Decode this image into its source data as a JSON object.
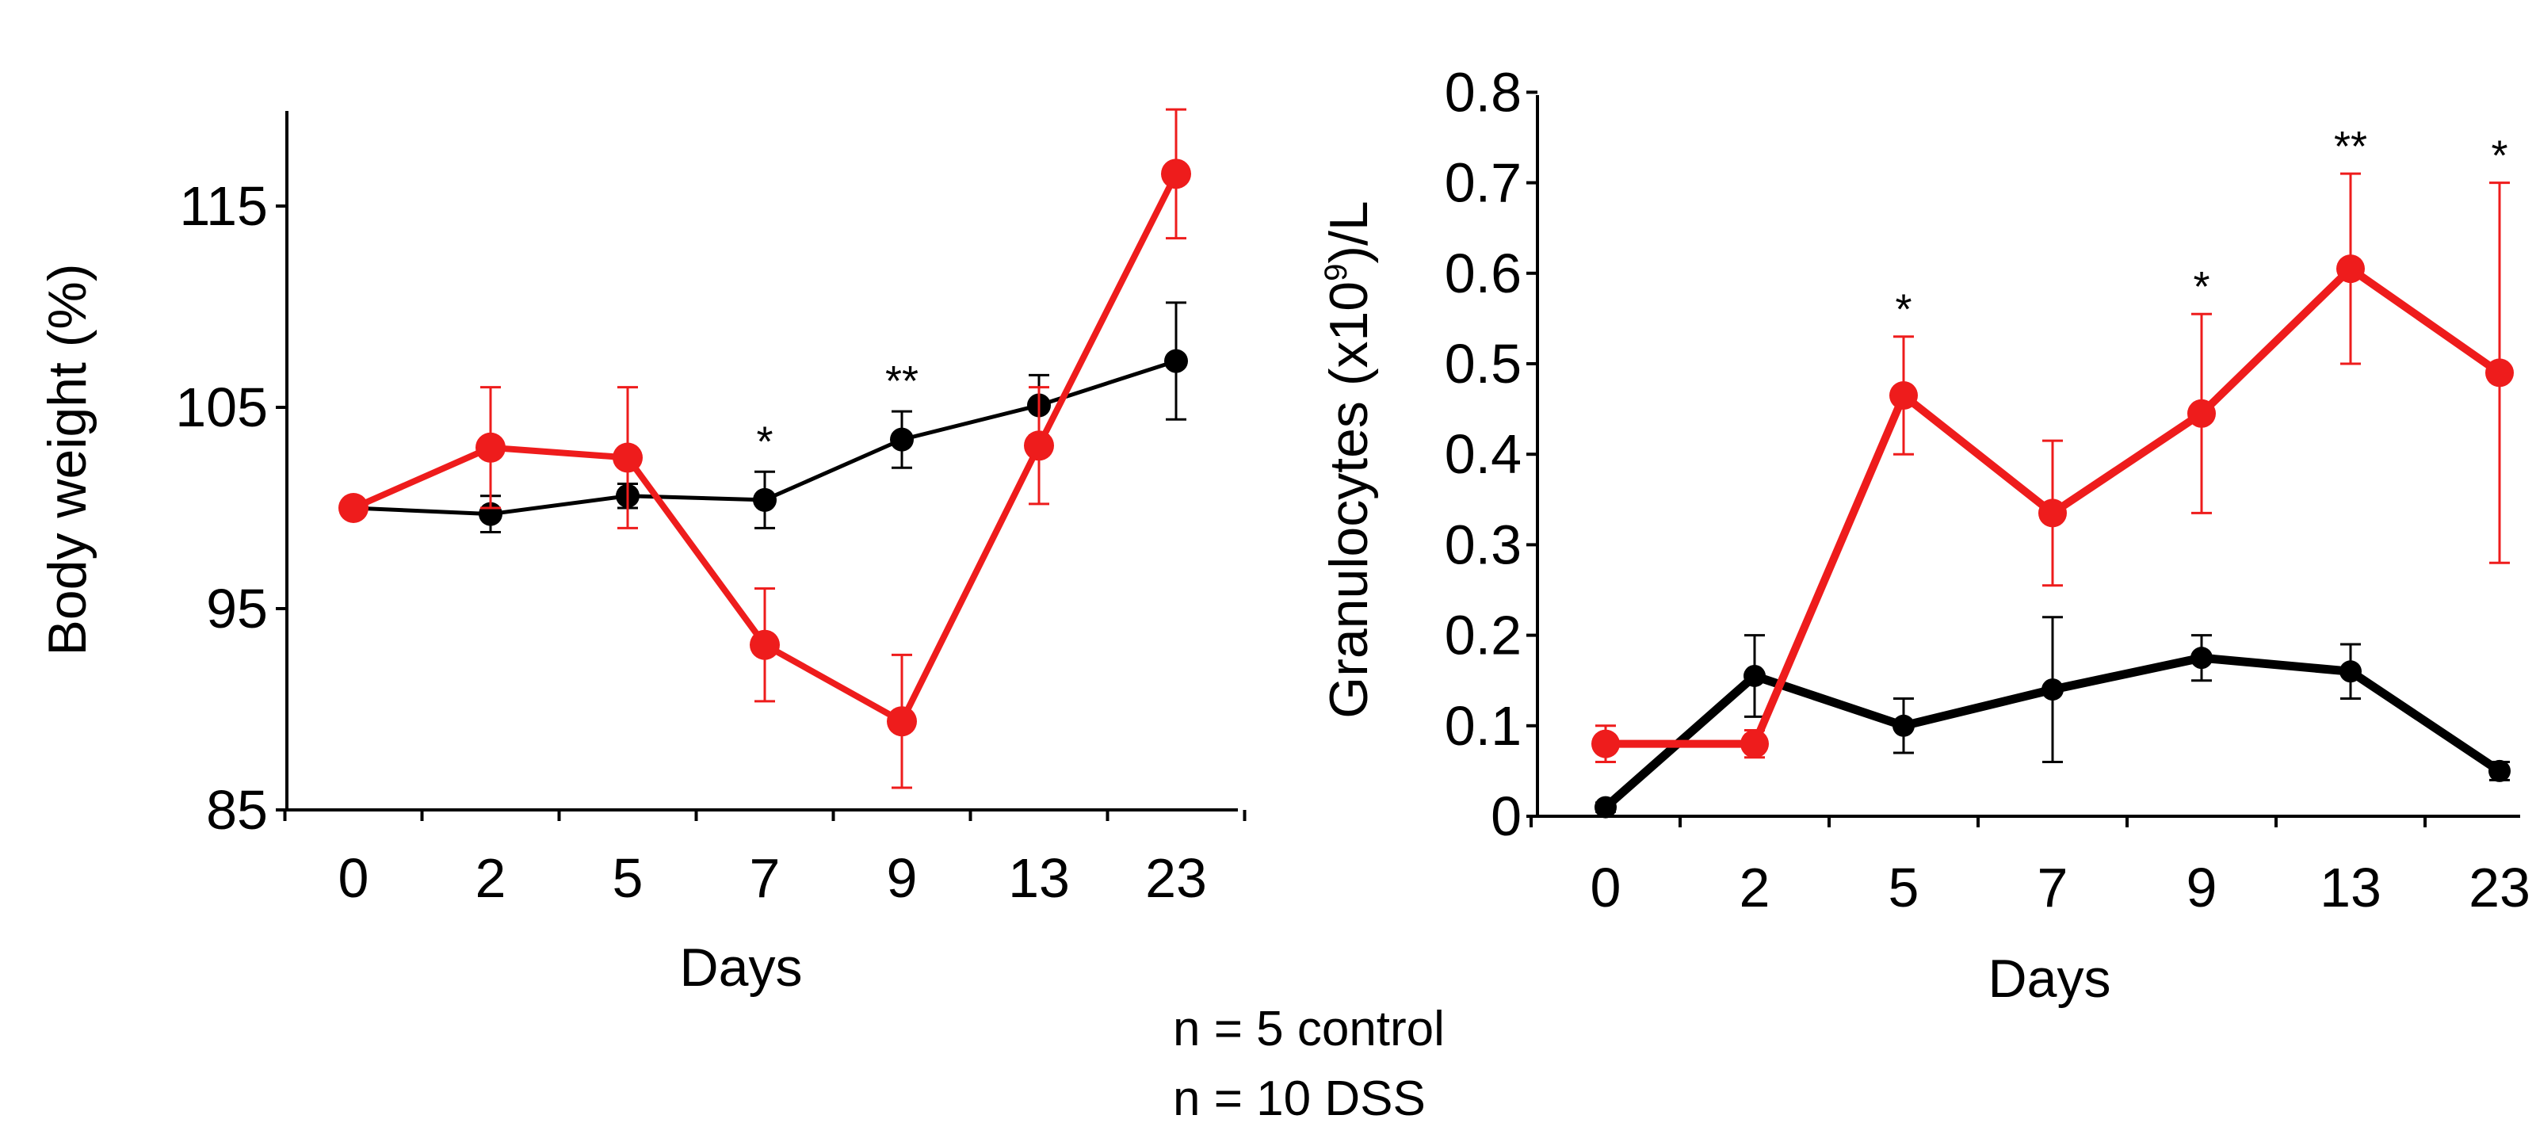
{
  "chart_data": [
    {
      "type": "line",
      "title": "",
      "xlabel": "Days",
      "ylabel": "Body weight (%)",
      "categories": [
        "0",
        "2",
        "5",
        "7",
        "9",
        "13",
        "23"
      ],
      "ylim": [
        85,
        120
      ],
      "yticks": [
        85,
        95,
        105,
        115
      ],
      "series": [
        {
          "name": "control",
          "color": "#000000",
          "values": [
            100,
            99.7,
            100.6,
            100.4,
            103.4,
            105.1,
            107.3
          ],
          "errors": [
            0.3,
            0.9,
            0.6,
            1.4,
            1.4,
            1.5,
            2.9
          ]
        },
        {
          "name": "DSS",
          "color": "#ee1c1c",
          "values": [
            100,
            103,
            102.5,
            93.2,
            89.4,
            103.1,
            116.6
          ],
          "errors": [
            0.3,
            3.0,
            3.5,
            2.8,
            3.3,
            2.9,
            3.2
          ]
        }
      ],
      "annotations": [
        {
          "category_index": 3,
          "text": "*"
        },
        {
          "category_index": 4,
          "text": "**"
        }
      ]
    },
    {
      "type": "line",
      "title": "",
      "xlabel": "Days",
      "ylabel_main": "Granulocytes (x10",
      "ylabel_sup": "9",
      "ylabel_tail": ")/L",
      "categories": [
        "0",
        "2",
        "5",
        "7",
        "9",
        "13",
        "23"
      ],
      "ylim": [
        0,
        0.8
      ],
      "yticks": [
        "0",
        "0.1",
        "0.2",
        "0.3",
        "0.4",
        "0.5",
        "0.6",
        "0.7",
        "0.8"
      ],
      "series": [
        {
          "name": "control",
          "color": "#000000",
          "values": [
            0.01,
            0.155,
            0.1,
            0.14,
            0.175,
            0.16,
            0.05
          ],
          "errors": [
            0.005,
            0.045,
            0.03,
            0.08,
            0.025,
            0.03,
            0.01
          ]
        },
        {
          "name": "DSS",
          "color": "#ee1c1c",
          "values": [
            0.08,
            0.08,
            0.465,
            0.335,
            0.445,
            0.605,
            0.49
          ],
          "errors": [
            0.02,
            0.015,
            0.065,
            0.08,
            0.11,
            0.105,
            0.21
          ]
        }
      ],
      "annotations": [
        {
          "category_index": 2,
          "text": "*"
        },
        {
          "category_index": 4,
          "text": "*"
        },
        {
          "category_index": 5,
          "text": "**"
        },
        {
          "category_index": 6,
          "text": "*"
        }
      ]
    }
  ],
  "notes": {
    "line1": "n = 5 control",
    "line2": "n = 10 DSS"
  }
}
